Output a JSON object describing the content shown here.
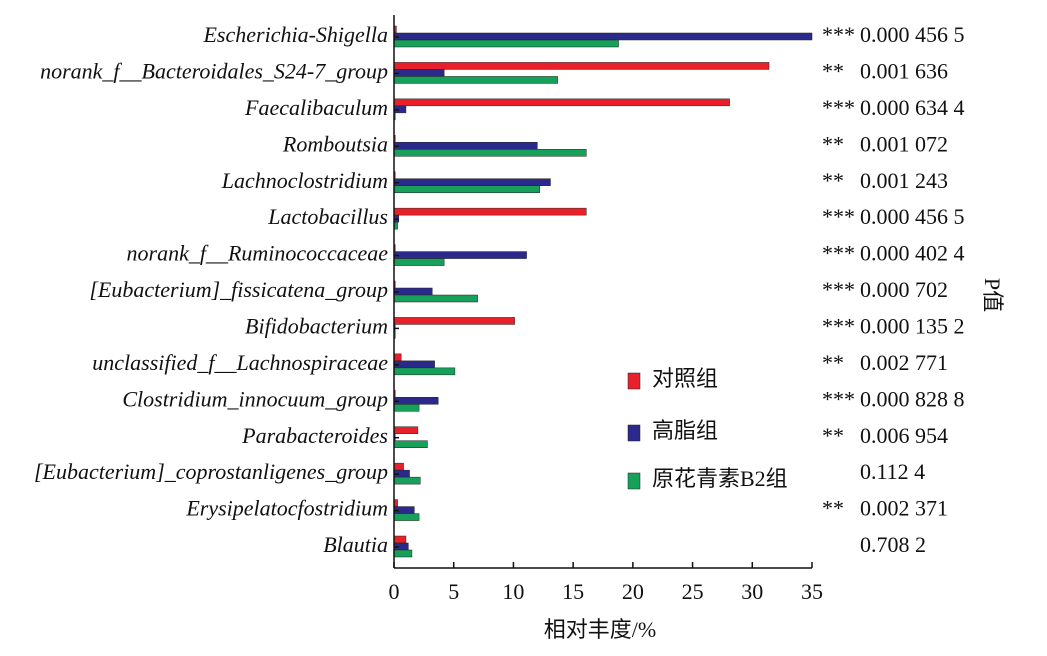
{
  "chart_data": {
    "type": "bar",
    "orientation": "horizontal",
    "xlabel": "相对丰度/%",
    "p_label": "P值",
    "categories": [
      "Escherichia-Shigella",
      "norank_f__Bacteroidales_S24-7_group",
      "Faecalibaculum",
      "Romboutsia",
      "Lachnoclostridium",
      "Lactobacillus",
      "norank_f__Ruminococcaceae",
      "[Eubacterium]_fissicatena_group",
      "Bifidobacterium",
      "unclassified_f__Lachnospiraceae",
      "Clostridium_innocuum_group",
      "Parabacteroides",
      "[Eubacterium]_coprostanligenes_group",
      "Erysipelatocfostridium",
      "Blautia"
    ],
    "series": [
      {
        "name": "对照组",
        "color": "#e8202a",
        "values": [
          0.2,
          31.4,
          28.1,
          0.1,
          0.1,
          16.1,
          0.1,
          0.1,
          10.1,
          0.6,
          0.1,
          2.0,
          0.8,
          0.3,
          1.0
        ]
      },
      {
        "name": "高脂组",
        "color": "#2b2a8c",
        "values": [
          35,
          4.2,
          1.0,
          12.0,
          13.1,
          0.4,
          11.1,
          3.2,
          0.1,
          3.4,
          3.7,
          0.1,
          1.3,
          1.7,
          1.2
        ]
      },
      {
        "name": "原花青素B2组",
        "color": "#16a05a",
        "values": [
          18.8,
          13.7,
          0.1,
          16.1,
          12.2,
          0.3,
          4.2,
          7.0,
          0.1,
          5.1,
          2.1,
          2.8,
          2.2,
          2.1,
          1.5
        ]
      }
    ],
    "significance": [
      "***",
      "**",
      "***",
      "**",
      "**",
      "***",
      "***",
      "***",
      "***",
      "**",
      "***",
      "**",
      null,
      "**",
      null
    ],
    "p_values": [
      "0.000 456 5",
      "0.001 636",
      "0.000 634 4",
      "0.001 072",
      "0.001 243",
      "0.000 456 5",
      "0.000 402 4",
      "0.000 702",
      "0.000 135 2",
      "0.002 771",
      "0.000 828 8",
      "0.006 954",
      "0.112 4",
      "0.002 371",
      "0.708 2"
    ],
    "xlim": [
      0,
      35
    ],
    "xticks": [
      0,
      5,
      10,
      15,
      20,
      25,
      30,
      35
    ]
  }
}
